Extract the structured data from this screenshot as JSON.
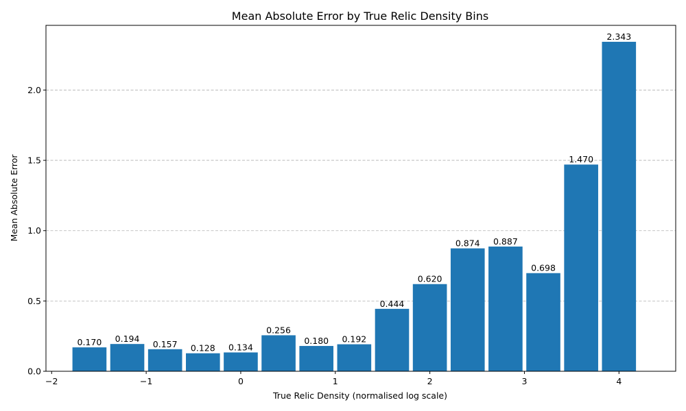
{
  "chart_data": {
    "type": "bar",
    "title": "Mean Absolute Error by True Relic Density Bins",
    "xlabel": "True Relic Density (normalised log scale)",
    "ylabel": "Mean Absolute Error",
    "x": [
      -1.6,
      -1.2,
      -0.8,
      -0.4,
      0.0,
      0.4,
      0.8,
      1.2,
      1.6,
      2.0,
      2.4,
      2.8,
      3.2,
      3.6,
      4.0
    ],
    "bar_width": 0.36,
    "values": [
      0.17,
      0.194,
      0.157,
      0.128,
      0.134,
      0.256,
      0.18,
      0.192,
      0.444,
      0.62,
      0.874,
      0.887,
      0.698,
      1.47,
      2.343
    ],
    "value_labels": [
      "0.170",
      "0.194",
      "0.157",
      "0.128",
      "0.134",
      "0.256",
      "0.180",
      "0.192",
      "0.444",
      "0.620",
      "0.874",
      "0.887",
      "0.698",
      "1.470",
      "2.343"
    ],
    "xlim": [
      -2.06,
      4.6
    ],
    "ylim": [
      0,
      2.46
    ],
    "xticks": [
      -2,
      -1,
      0,
      1,
      2,
      3,
      4
    ],
    "xtick_labels": [
      "−2",
      "−1",
      "0",
      "1",
      "2",
      "3",
      "4"
    ],
    "yticks": [
      0.0,
      0.5,
      1.0,
      1.5,
      2.0
    ],
    "ytick_labels": [
      "0.0",
      "0.5",
      "1.0",
      "1.5",
      "2.0"
    ],
    "grid": "y-dashed",
    "bar_color": "#1f77b4"
  }
}
